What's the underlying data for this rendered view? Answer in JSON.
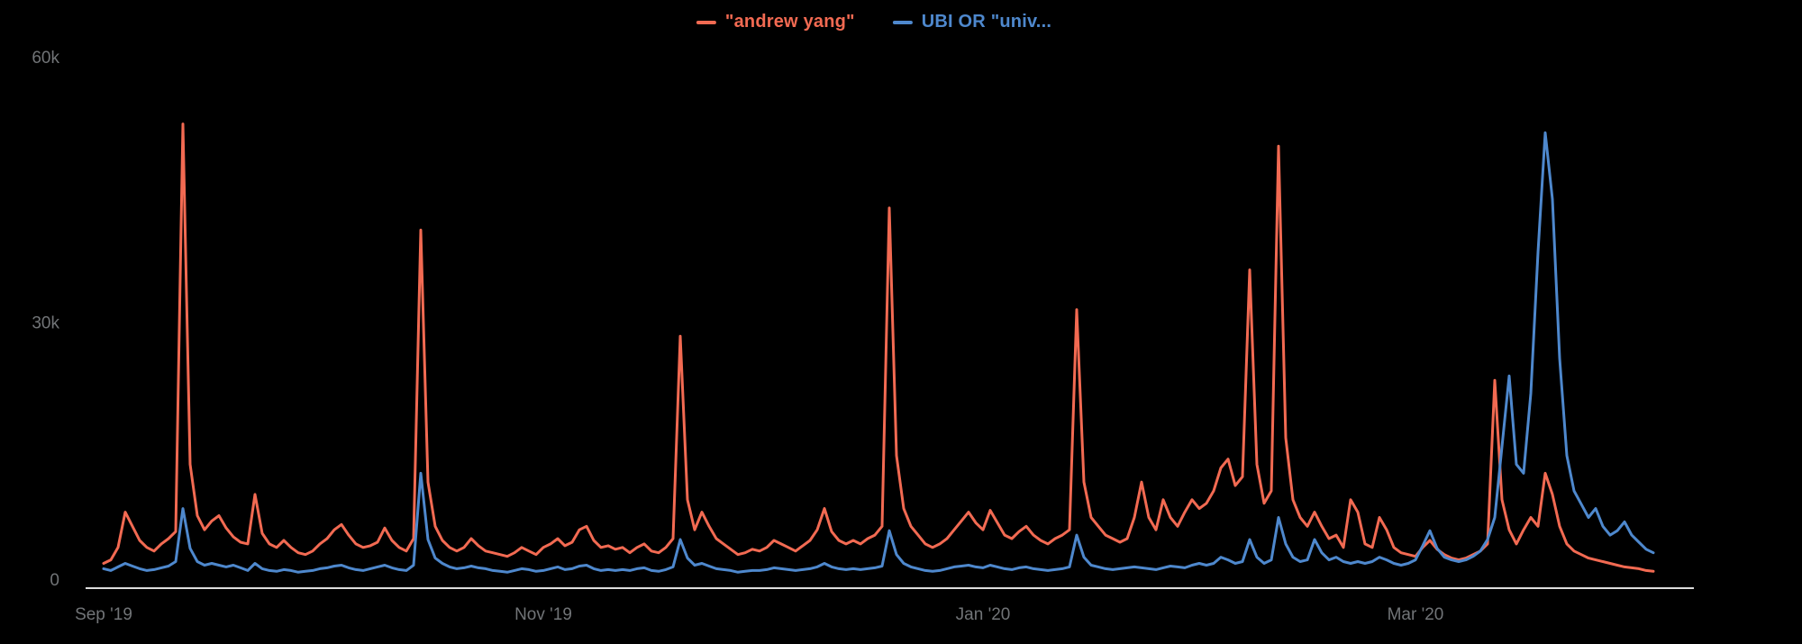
{
  "page": {
    "background": "#000000"
  },
  "style": {
    "axis_line_color": "#dcdcdc",
    "tick_label_color": "#717477",
    "series_red": "#f26a52",
    "series_blue": "#4e88cd"
  },
  "chart_data": {
    "type": "line",
    "title": "",
    "grid": false,
    "legend_position": "top-center",
    "y_unit": "k (values stored in thousands of mentions)",
    "x": {
      "start_date": "2019-09-01",
      "interval": "daily",
      "num_points": 216
    },
    "x_axis": {
      "ticks": [
        {
          "date": "2019-09-01",
          "label": "Sep '19"
        },
        {
          "date": "2019-11-01",
          "label": "Nov '19"
        },
        {
          "date": "2020-01-01",
          "label": "Jan '20"
        },
        {
          "date": "2020-03-01",
          "label": "Mar '20"
        }
      ]
    },
    "y_axis": {
      "min": 0,
      "max": 60,
      "ticks": [
        {
          "value": 0,
          "label": "0"
        },
        {
          "value": 30,
          "label": "30k"
        },
        {
          "value": 60,
          "label": "60k"
        }
      ]
    },
    "series": [
      {
        "name": "\"andrew yang\"",
        "color": "#f26a52",
        "values": [
          2.8,
          3.2,
          4.6,
          8.6,
          7.0,
          5.4,
          4.6,
          4.2,
          5.0,
          5.6,
          6.4,
          52.5,
          14.0,
          8.2,
          6.6,
          7.6,
          8.2,
          6.8,
          5.8,
          5.2,
          5.0,
          10.6,
          6.2,
          5.0,
          4.6,
          5.4,
          4.6,
          4.0,
          3.8,
          4.2,
          5.0,
          5.6,
          6.6,
          7.2,
          6.0,
          5.0,
          4.6,
          4.8,
          5.2,
          6.8,
          5.4,
          4.6,
          4.2,
          5.6,
          40.5,
          12.0,
          7.0,
          5.4,
          4.6,
          4.2,
          4.6,
          5.6,
          4.8,
          4.2,
          4.0,
          3.8,
          3.6,
          4.0,
          4.6,
          4.2,
          3.8,
          4.6,
          5.0,
          5.6,
          4.8,
          5.2,
          6.6,
          7.0,
          5.4,
          4.6,
          4.8,
          4.4,
          4.6,
          4.0,
          4.6,
          5.0,
          4.2,
          4.0,
          4.6,
          5.6,
          28.5,
          10.0,
          6.6,
          8.6,
          7.0,
          5.6,
          5.0,
          4.4,
          3.8,
          4.0,
          4.4,
          4.2,
          4.6,
          5.4,
          5.0,
          4.6,
          4.2,
          4.8,
          5.4,
          6.6,
          9.0,
          6.4,
          5.4,
          5.0,
          5.4,
          5.0,
          5.6,
          6.0,
          7.0,
          43.0,
          15.0,
          9.0,
          7.0,
          6.0,
          5.0,
          4.6,
          5.0,
          5.6,
          6.6,
          7.6,
          8.6,
          7.4,
          6.6,
          8.8,
          7.4,
          6.0,
          5.6,
          6.4,
          7.0,
          6.0,
          5.4,
          5.0,
          5.6,
          6.0,
          6.6,
          31.5,
          12.0,
          8.0,
          7.0,
          6.0,
          5.6,
          5.2,
          5.6,
          8.0,
          12.0,
          8.0,
          6.6,
          10.0,
          8.0,
          7.0,
          8.6,
          10.0,
          9.0,
          9.6,
          11.0,
          13.6,
          14.6,
          11.6,
          12.6,
          36.0,
          14.0,
          9.6,
          11.0,
          50.0,
          17.0,
          10.0,
          8.0,
          7.0,
          8.6,
          7.0,
          5.6,
          6.0,
          4.6,
          10.0,
          8.6,
          5.0,
          4.6,
          8.0,
          6.6,
          4.6,
          4.0,
          3.8,
          3.6,
          4.6,
          5.4,
          4.4,
          3.8,
          3.4,
          3.2,
          3.4,
          3.8,
          4.2,
          5.0,
          23.5,
          10.0,
          6.6,
          5.0,
          6.6,
          8.0,
          7.0,
          13.0,
          10.6,
          7.0,
          5.0,
          4.2,
          3.8,
          3.4,
          3.2,
          3.0,
          2.8,
          2.6,
          2.4,
          2.3,
          2.2,
          2.0,
          1.9
        ]
      },
      {
        "name": "UBI OR \"univ...",
        "color": "#4e88cd",
        "values": [
          2.2,
          2.0,
          2.4,
          2.8,
          2.5,
          2.2,
          2.0,
          2.1,
          2.3,
          2.5,
          3.0,
          9.0,
          4.5,
          3.0,
          2.6,
          2.8,
          2.6,
          2.4,
          2.6,
          2.3,
          2.0,
          2.8,
          2.2,
          2.0,
          1.9,
          2.1,
          2.0,
          1.8,
          1.9,
          2.0,
          2.2,
          2.3,
          2.5,
          2.6,
          2.3,
          2.1,
          2.0,
          2.2,
          2.4,
          2.6,
          2.3,
          2.1,
          2.0,
          2.6,
          13.0,
          5.5,
          3.4,
          2.8,
          2.4,
          2.2,
          2.3,
          2.5,
          2.3,
          2.2,
          2.0,
          1.9,
          1.8,
          2.0,
          2.2,
          2.1,
          1.9,
          2.0,
          2.2,
          2.4,
          2.1,
          2.2,
          2.5,
          2.6,
          2.2,
          2.0,
          2.1,
          2.0,
          2.1,
          2.0,
          2.2,
          2.3,
          2.0,
          1.9,
          2.1,
          2.4,
          5.5,
          3.4,
          2.6,
          2.8,
          2.5,
          2.2,
          2.1,
          2.0,
          1.8,
          1.9,
          2.0,
          2.0,
          2.1,
          2.3,
          2.2,
          2.1,
          2.0,
          2.1,
          2.2,
          2.4,
          2.8,
          2.4,
          2.2,
          2.1,
          2.2,
          2.1,
          2.2,
          2.3,
          2.5,
          6.5,
          3.8,
          2.8,
          2.4,
          2.2,
          2.0,
          1.9,
          2.0,
          2.2,
          2.4,
          2.5,
          2.6,
          2.4,
          2.3,
          2.6,
          2.4,
          2.2,
          2.1,
          2.3,
          2.4,
          2.2,
          2.1,
          2.0,
          2.1,
          2.2,
          2.4,
          6.0,
          3.5,
          2.6,
          2.4,
          2.2,
          2.1,
          2.2,
          2.3,
          2.4,
          2.3,
          2.2,
          2.1,
          2.3,
          2.5,
          2.4,
          2.3,
          2.6,
          2.8,
          2.6,
          2.8,
          3.5,
          3.2,
          2.8,
          3.0,
          5.5,
          3.5,
          2.8,
          3.2,
          8.0,
          5.0,
          3.5,
          3.0,
          3.2,
          5.5,
          4.0,
          3.2,
          3.5,
          3.0,
          2.8,
          3.0,
          2.8,
          3.0,
          3.5,
          3.2,
          2.8,
          2.6,
          2.8,
          3.2,
          4.8,
          6.5,
          4.5,
          3.5,
          3.2,
          3.0,
          3.2,
          3.6,
          4.2,
          5.5,
          8.0,
          16.0,
          24.0,
          14.0,
          13.0,
          22.0,
          38.0,
          51.5,
          44.0,
          26.0,
          15.0,
          11.0,
          9.5,
          8.0,
          9.0,
          7.0,
          6.0,
          6.5,
          7.5,
          6.0,
          5.2,
          4.4,
          4.0
        ]
      }
    ]
  }
}
